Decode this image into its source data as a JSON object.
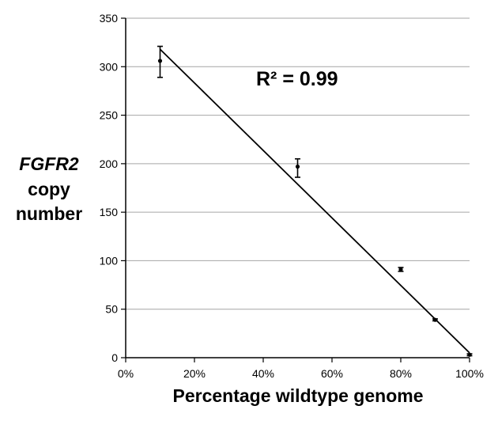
{
  "chart_data": {
    "type": "scatter",
    "title": "",
    "xlabel": "Percentage wildtype genome",
    "ylabel_lines": [
      "FGFR2",
      "copy",
      "number"
    ],
    "xlim": [
      0,
      100
    ],
    "ylim": [
      0,
      350
    ],
    "x_ticks": [
      0,
      20,
      40,
      60,
      80,
      100
    ],
    "x_tick_labels": [
      "0%",
      "20%",
      "40%",
      "60%",
      "80%",
      "100%"
    ],
    "y_ticks": [
      0,
      50,
      100,
      150,
      200,
      250,
      300,
      350
    ],
    "y_tick_labels": [
      "0",
      "50",
      "100",
      "150",
      "200",
      "250",
      "300",
      "350"
    ],
    "grid": "horizontal",
    "annotation": "R² = 0.99",
    "series": [
      {
        "points": [
          {
            "x": 10,
            "y": 306,
            "err_low": 17,
            "err_high": 15
          },
          {
            "x": 50,
            "y": 197,
            "err_low": 11,
            "err_high": 8
          },
          {
            "x": 80,
            "y": 91,
            "err_low": 2,
            "err_high": 2
          },
          {
            "x": 90,
            "y": 39,
            "err_low": 1,
            "err_high": 1
          },
          {
            "x": 100,
            "y": 3,
            "err_low": 1,
            "err_high": 1
          }
        ]
      }
    ],
    "trendline": {
      "x_start": 10,
      "y_start": 318,
      "x_end": 100,
      "y_end": 5
    }
  }
}
